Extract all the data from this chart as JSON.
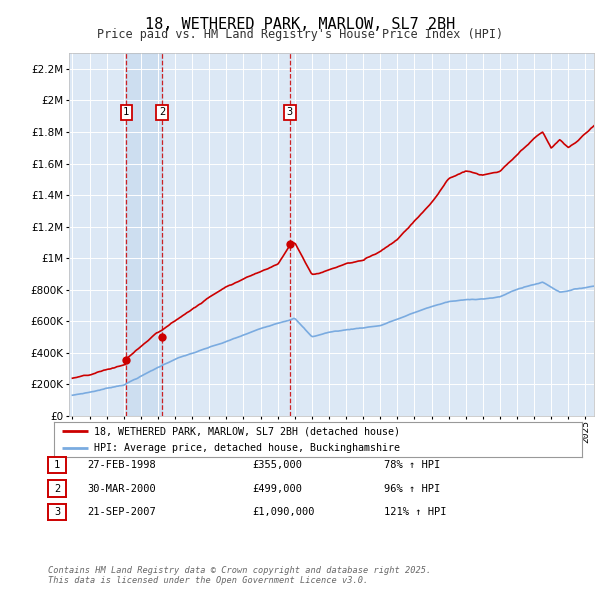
{
  "title": "18, WETHERED PARK, MARLOW, SL7 2BH",
  "subtitle": "Price paid vs. HM Land Registry's House Price Index (HPI)",
  "title_fontsize": 11,
  "subtitle_fontsize": 8.5,
  "background_color": "#ffffff",
  "plot_bg_color": "#dce8f5",
  "shaded_region_color": "#c5d8ee",
  "grid_color": "#ffffff",
  "ylim": [
    0,
    2300000
  ],
  "yticks": [
    0,
    200000,
    400000,
    600000,
    800000,
    1000000,
    1200000,
    1400000,
    1600000,
    1800000,
    2000000,
    2200000
  ],
  "ytick_labels": [
    "£0",
    "£200K",
    "£400K",
    "£600K",
    "£800K",
    "£1M",
    "£1.2M",
    "£1.4M",
    "£1.6M",
    "£1.8M",
    "£2M",
    "£2.2M"
  ],
  "red_line_color": "#cc0000",
  "blue_line_color": "#7aabe0",
  "transaction_marker_color": "#cc0000",
  "transaction_dates": [
    1998.15,
    2000.25,
    2007.72
  ],
  "transaction_prices": [
    355000,
    499000,
    1090000
  ],
  "transaction_labels": [
    "1",
    "2",
    "3"
  ],
  "legend_label_red": "18, WETHERED PARK, MARLOW, SL7 2BH (detached house)",
  "legend_label_blue": "HPI: Average price, detached house, Buckinghamshire",
  "table_entries": [
    {
      "num": "1",
      "date": "27-FEB-1998",
      "price": "£355,000",
      "hpi": "78% ↑ HPI"
    },
    {
      "num": "2",
      "date": "30-MAR-2000",
      "price": "£499,000",
      "hpi": "96% ↑ HPI"
    },
    {
      "num": "3",
      "date": "21-SEP-2007",
      "price": "£1,090,000",
      "hpi": "121% ↑ HPI"
    }
  ],
  "footer_text": "Contains HM Land Registry data © Crown copyright and database right 2025.\nThis data is licensed under the Open Government Licence v3.0.",
  "xmin": 1994.8,
  "xmax": 2025.5
}
